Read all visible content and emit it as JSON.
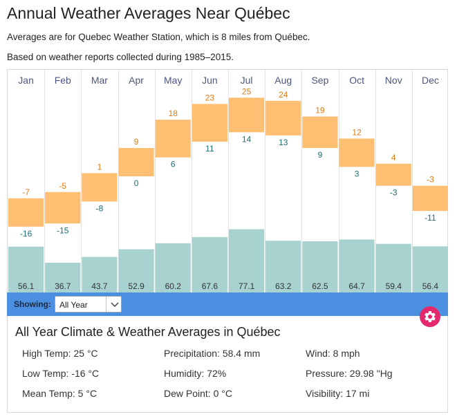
{
  "header": {
    "title": "Annual Weather Averages Near Québec",
    "subtitle_station": "Averages are for Quebec Weather Station, which is 8 miles from Québec.",
    "subtitle_period": "Based on weather reports collected during 1985–2015."
  },
  "chart_data": {
    "type": "bar",
    "categories": [
      "Jan",
      "Feb",
      "Mar",
      "Apr",
      "May",
      "Jun",
      "Jul",
      "Aug",
      "Sep",
      "Oct",
      "Nov",
      "Dec"
    ],
    "series": [
      {
        "values": [
          -7,
          -5,
          1,
          9,
          18,
          23,
          25,
          24,
          19,
          12,
          4,
          -3
        ]
      },
      {
        "values": [
          -16,
          -15,
          -8,
          0,
          6,
          11,
          14,
          13,
          9,
          3,
          -3,
          -11
        ]
      },
      {
        "values": [
          56.1,
          36.7,
          43.7,
          52.9,
          60.2,
          67.6,
          77.1,
          63.2,
          62.5,
          64.7,
          59.4,
          56.4
        ]
      }
    ],
    "colors": {
      "temp_range": "#ffbf73",
      "precip": "#a8d2d0",
      "high_text": "#e07b10",
      "low_text": "#1c6d74",
      "month_text": "#4a5580"
    }
  },
  "filter": {
    "showing_label": "Showing:",
    "selected": "All Year",
    "chevron_icon": "chevron-down-icon"
  },
  "settings_button": {
    "icon": "gear-icon",
    "color": "#e3286b"
  },
  "summary": {
    "title": "All Year Climate & Weather Averages in Québec",
    "stats": {
      "high_temp": "High Temp: 25 °C",
      "low_temp": "Low Temp: -16 °C",
      "mean_temp": "Mean Temp: 5 °C",
      "precipitation": "Precipitation: 58.4 mm",
      "humidity": "Humidity: 72%",
      "dew_point": "Dew Point: 0 °C",
      "wind": "Wind: 8 mph",
      "pressure": "Pressure: 29.98 \"Hg",
      "visibility": "Visibility: 17 mi"
    }
  }
}
